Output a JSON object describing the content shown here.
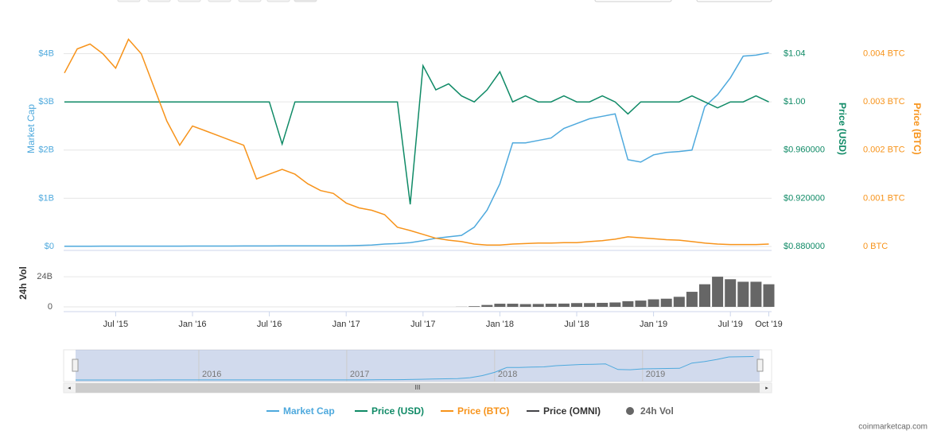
{
  "chart_data": {
    "type": "line",
    "x": [
      "2015-03",
      "2015-04",
      "2015-05",
      "2015-06",
      "2015-07",
      "2015-08",
      "2015-09",
      "2015-10",
      "2015-11",
      "2015-12",
      "2016-01",
      "2016-02",
      "2016-03",
      "2016-04",
      "2016-05",
      "2016-06",
      "2016-07",
      "2016-08",
      "2016-09",
      "2016-10",
      "2016-11",
      "2016-12",
      "2017-01",
      "2017-02",
      "2017-03",
      "2017-04",
      "2017-05",
      "2017-06",
      "2017-07",
      "2017-08",
      "2017-09",
      "2017-10",
      "2017-11",
      "2017-12",
      "2018-01",
      "2018-02",
      "2018-03",
      "2018-04",
      "2018-05",
      "2018-06",
      "2018-07",
      "2018-08",
      "2018-09",
      "2018-10",
      "2018-11",
      "2018-12",
      "2019-01",
      "2019-02",
      "2019-03",
      "2019-04",
      "2019-05",
      "2019-06",
      "2019-07",
      "2019-08",
      "2019-09",
      "2019-10"
    ],
    "series": [
      {
        "name": "Market Cap",
        "color": "#4ea9dd",
        "values": [
          0.005,
          0.005,
          0.005,
          0.006,
          0.006,
          0.006,
          0.006,
          0.007,
          0.007,
          0.007,
          0.008,
          0.008,
          0.009,
          0.009,
          0.01,
          0.01,
          0.01,
          0.011,
          0.011,
          0.012,
          0.012,
          0.013,
          0.015,
          0.02,
          0.03,
          0.05,
          0.06,
          0.08,
          0.12,
          0.17,
          0.2,
          0.23,
          0.4,
          0.75,
          1.3,
          2.15,
          2.15,
          2.2,
          2.25,
          2.45,
          2.55,
          2.65,
          2.7,
          2.75,
          1.8,
          1.75,
          1.9,
          1.95,
          1.97,
          2.0,
          2.9,
          3.15,
          3.5,
          3.95,
          3.97,
          4.02
        ]
      },
      {
        "name": "Price (USD)",
        "color": "#0f8a66",
        "axis": "y2",
        "values": [
          1.0,
          1.0,
          1.0,
          1.0,
          1.0,
          1.0,
          1.0,
          1.0,
          1.0,
          1.0,
          1.0,
          1.0,
          1.0,
          1.0,
          1.0,
          1.0,
          1.0,
          0.965,
          1.0,
          1.0,
          1.0,
          1.0,
          1.0,
          1.0,
          1.0,
          1.0,
          1.0,
          0.915,
          1.03,
          1.01,
          1.015,
          1.005,
          1.0,
          1.01,
          1.025,
          1.0,
          1.005,
          1.0,
          1.0,
          1.005,
          1.0,
          1.0,
          1.005,
          1.0,
          0.99,
          1.0,
          1.0,
          1.0,
          1.0,
          1.005,
          1.0,
          0.995,
          1.0,
          1.0,
          1.005,
          1.0
        ]
      },
      {
        "name": "Price (BTC)",
        "color": "#f7931a",
        "axis": "y3",
        "values": [
          0.0036,
          0.0041,
          0.0042,
          0.004,
          0.0037,
          0.0043,
          0.004,
          0.0033,
          0.0026,
          0.0021,
          0.0025,
          0.0024,
          0.0023,
          0.0022,
          0.0021,
          0.0014,
          0.0015,
          0.0016,
          0.0015,
          0.0013,
          0.00116,
          0.0011,
          0.0009,
          0.0008,
          0.00075,
          0.00066,
          0.0004,
          0.00033,
          0.00025,
          0.00017,
          0.00013,
          0.0001,
          5e-05,
          3e-05,
          3e-05,
          5e-05,
          6e-05,
          7e-05,
          7e-05,
          8e-05,
          8e-05,
          0.0001,
          0.00012,
          0.00015,
          0.0002,
          0.00018,
          0.00016,
          0.00014,
          0.00013,
          0.0001,
          7e-05,
          5e-05,
          4e-05,
          4e-05,
          4e-05,
          5e-05
        ]
      },
      {
        "name": "Price (OMNI)",
        "color": "#434348",
        "values": [
          null,
          null,
          null,
          null,
          null,
          null,
          null,
          null,
          null,
          null,
          null,
          null,
          null,
          null,
          null,
          null,
          null,
          null,
          null,
          null,
          null,
          null,
          null,
          null,
          null,
          null,
          null,
          null,
          null,
          null,
          null,
          null,
          null,
          null,
          null,
          null,
          null,
          null,
          null,
          null,
          null,
          null,
          null,
          null,
          null,
          null,
          null,
          null,
          null,
          null,
          null,
          null,
          null,
          null,
          null,
          null
        ]
      },
      {
        "name": "24h Vol",
        "color": "#666666",
        "type": "bar",
        "axis": "vol",
        "values": [
          0,
          0,
          0,
          0,
          0,
          0,
          0,
          0,
          0,
          0,
          0,
          0,
          0,
          0,
          0,
          0,
          0,
          0,
          0,
          0,
          0,
          0,
          0,
          0,
          0,
          0,
          0,
          0,
          0,
          0,
          0,
          0.1,
          0.5,
          1.5,
          2.5,
          2.5,
          2.2,
          2.3,
          2.5,
          2.6,
          3,
          3,
          3.2,
          3.5,
          4.5,
          5,
          6,
          6.5,
          8,
          12,
          18,
          24,
          22,
          20,
          20,
          18
        ]
      }
    ],
    "y_label": "Market Cap",
    "ylim": [
      0,
      4.9
    ],
    "yticks": [
      {
        "value": 0,
        "label": "$0"
      },
      {
        "value": 1,
        "label": "$1B"
      },
      {
        "value": 2,
        "label": "$2B"
      },
      {
        "value": 3,
        "label": "$3B"
      },
      {
        "value": 4,
        "label": "$4B"
      }
    ],
    "y2_label": "Price (USD)",
    "y2lim": [
      0.88,
      1.076
    ],
    "y2ticks": [
      {
        "value": 0.88,
        "label": "$0.880000"
      },
      {
        "value": 0.92,
        "label": "$0.920000"
      },
      {
        "value": 0.96,
        "label": "$0.960000"
      },
      {
        "value": 1.0,
        "label": "$1.00"
      },
      {
        "value": 1.04,
        "label": "$1.04"
      }
    ],
    "y3_label": "Price (BTC)",
    "y3lim": [
      0,
      0.0049
    ],
    "y3ticks": [
      {
        "value": 0,
        "label": "0 BTC"
      },
      {
        "value": 0.001,
        "label": "0.001 BTC"
      },
      {
        "value": 0.002,
        "label": "0.002 BTC"
      },
      {
        "value": 0.003,
        "label": "0.003 BTC"
      },
      {
        "value": 0.004,
        "label": "0.004 BTC"
      }
    ],
    "vol_label": "24h Vol",
    "vollim": [
      0,
      38
    ],
    "volticks": [
      0,
      {
        "value": 24,
        "label": "24B"
      }
    ],
    "xticks": [
      {
        "value": "2015-07",
        "label": "Jul '15"
      },
      {
        "value": "2016-01",
        "label": "Jan '16"
      },
      {
        "value": "2016-07",
        "label": "Jul '16"
      },
      {
        "value": "2017-01",
        "label": "Jan '17"
      },
      {
        "value": "2017-07",
        "label": "Jul '17"
      },
      {
        "value": "2018-01",
        "label": "Jan '18"
      },
      {
        "value": "2018-07",
        "label": "Jul '18"
      },
      {
        "value": "2019-01",
        "label": "Jan '19"
      },
      {
        "value": "2019-07",
        "label": "Jul '19"
      },
      {
        "value": "2019-10",
        "label": "Oct '19"
      }
    ],
    "grid": true,
    "navigator": {
      "labels": [
        {
          "value": "2016-01",
          "label": "2016"
        },
        {
          "value": "2017-01",
          "label": "2017"
        },
        {
          "value": "2018-01",
          "label": "2018"
        },
        {
          "value": "2019-01",
          "label": "2019"
        }
      ]
    }
  },
  "credit": "coinmarketcap.com"
}
